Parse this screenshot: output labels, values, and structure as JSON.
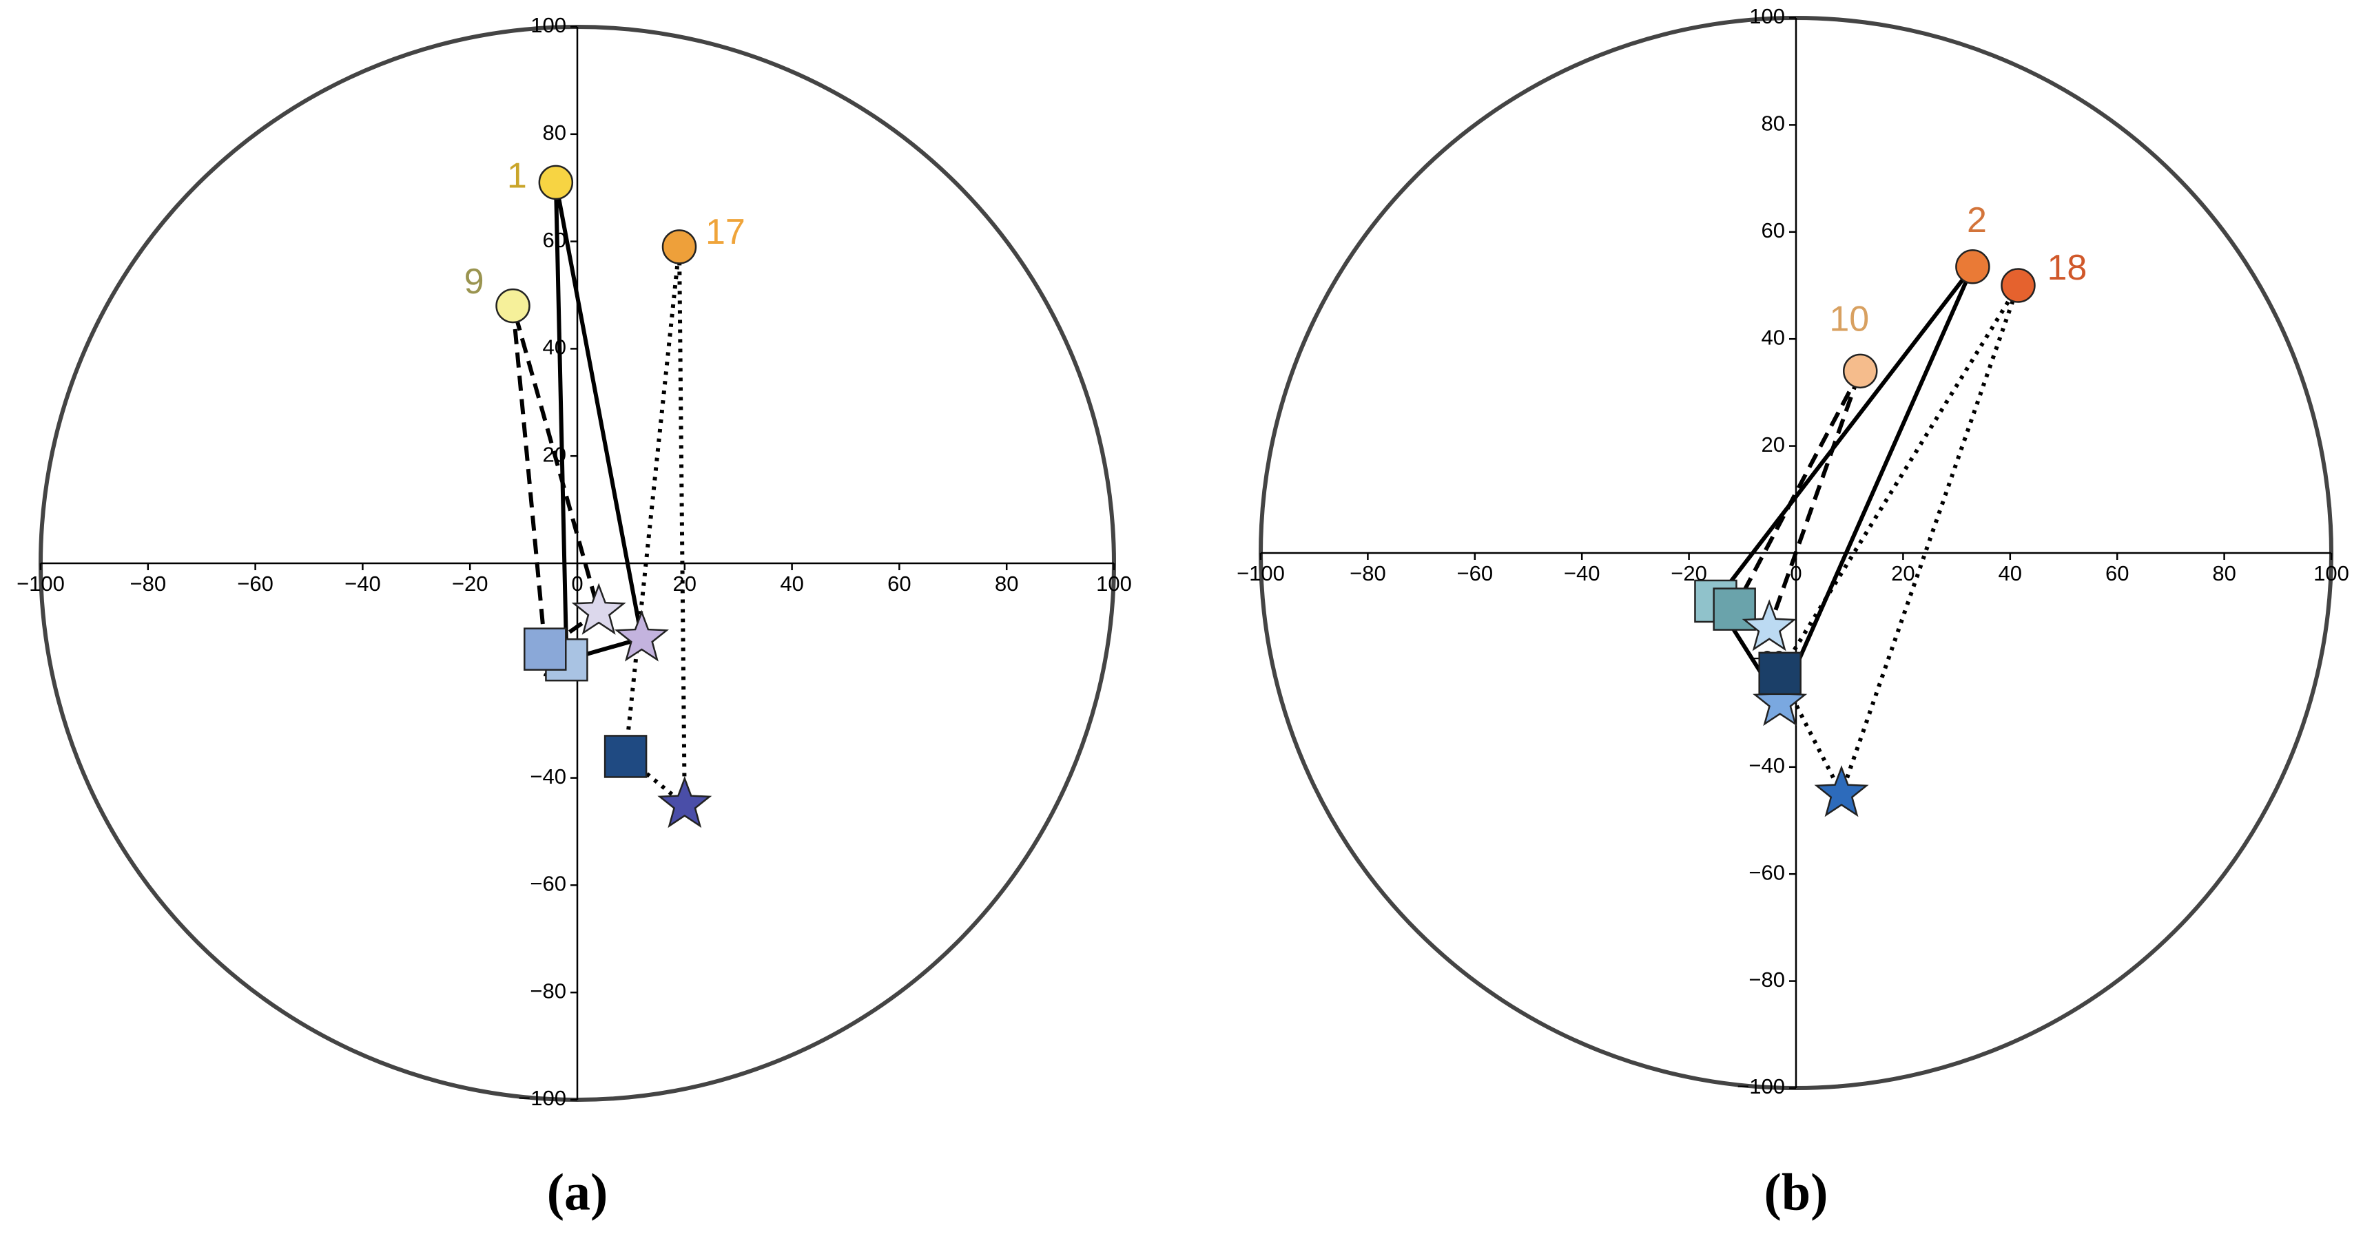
{
  "chart_data": [
    {
      "type": "scatter",
      "title": "(a)",
      "xlim": [
        -100,
        100
      ],
      "ylim": [
        -100,
        100
      ],
      "xticks": [
        {
          "value": -100,
          "label": "−100"
        },
        {
          "value": -80,
          "label": "−80"
        },
        {
          "value": -60,
          "label": "−60"
        },
        {
          "value": -40,
          "label": "−40"
        },
        {
          "value": -20,
          "label": "−20"
        },
        0,
        20,
        40,
        60,
        80,
        100
      ],
      "yticks": [
        {
          "value": -100,
          "label": "−100"
        },
        {
          "value": -80,
          "label": "−80"
        },
        {
          "value": -60,
          "label": "−60"
        },
        {
          "value": -40,
          "label": "−40"
        },
        {
          "value": -20,
          "label": "−20"
        },
        20,
        40,
        60,
        80,
        100
      ],
      "boundary_circle": true,
      "series": [
        {
          "name": "1",
          "label_color": "#c9a52a",
          "line_style": "solid",
          "markers": [
            "circle",
            "square",
            "star"
          ],
          "colors": [
            "#f7d443",
            "#a9c3e3",
            "#c3b3de"
          ],
          "x": [
            -4,
            -2,
            12
          ],
          "y": [
            71,
            -18,
            -14
          ]
        },
        {
          "name": "9",
          "label_color": "#9a9450",
          "line_style": "dashed",
          "markers": [
            "circle",
            "square",
            "star"
          ],
          "colors": [
            "#f6f09a",
            "#8aa8d8",
            "#dcd8ec"
          ],
          "x": [
            -12,
            -6,
            4
          ],
          "y": [
            48,
            -16,
            -9
          ]
        },
        {
          "name": "17",
          "label_color": "#efa43a",
          "line_style": "dotted",
          "markers": [
            "circle",
            "square",
            "star"
          ],
          "colors": [
            "#eea03a",
            "#1f4a82",
            "#4a4ea8"
          ],
          "x": [
            19,
            9,
            20
          ],
          "y": [
            59,
            -36,
            -45
          ]
        }
      ]
    },
    {
      "type": "scatter",
      "title": "(b)",
      "xlim": [
        -100,
        100
      ],
      "ylim": [
        -100,
        100
      ],
      "xticks": [
        {
          "value": -100,
          "label": "−100"
        },
        {
          "value": -80,
          "label": "−80"
        },
        {
          "value": -60,
          "label": "−60"
        },
        {
          "value": -40,
          "label": "−40"
        },
        {
          "value": -20,
          "label": "−20"
        },
        0,
        20,
        40,
        60,
        80,
        100
      ],
      "yticks": [
        {
          "value": -100,
          "label": "−100"
        },
        {
          "value": -80,
          "label": "−80"
        },
        {
          "value": -60,
          "label": "−60"
        },
        {
          "value": -40,
          "label": "−40"
        },
        {
          "value": -20,
          "label": "−20"
        },
        20,
        40,
        60,
        80,
        100
      ],
      "boundary_circle": true,
      "series": [
        {
          "name": "2",
          "label_color": "#d3743a",
          "line_style": "solid",
          "markers": [
            "circle",
            "square",
            "star"
          ],
          "colors": [
            "#ea7a36",
            "#90c2cb",
            "#7aa8e0"
          ],
          "x": [
            33,
            -15,
            -3
          ],
          "y": [
            53.5,
            -9,
            -28
          ]
        },
        {
          "name": "10",
          "label_color": "#d8a060",
          "line_style": "dashed",
          "markers": [
            "circle",
            "square",
            "star"
          ],
          "colors": [
            "#f5bc8c",
            "#6aa3ab",
            "#bcdaf2"
          ],
          "x": [
            12,
            -11.5,
            -5
          ],
          "y": [
            34,
            -10.5,
            -14
          ]
        },
        {
          "name": "18",
          "label_color": "#d0582a",
          "line_style": "dotted",
          "markers": [
            "circle",
            "square",
            "star"
          ],
          "colors": [
            "#e5622e",
            "#1b3f68",
            "#2d6bbb"
          ],
          "x": [
            41.5,
            -3,
            8.5
          ],
          "y": [
            50,
            -22.5,
            -45
          ]
        }
      ]
    }
  ]
}
